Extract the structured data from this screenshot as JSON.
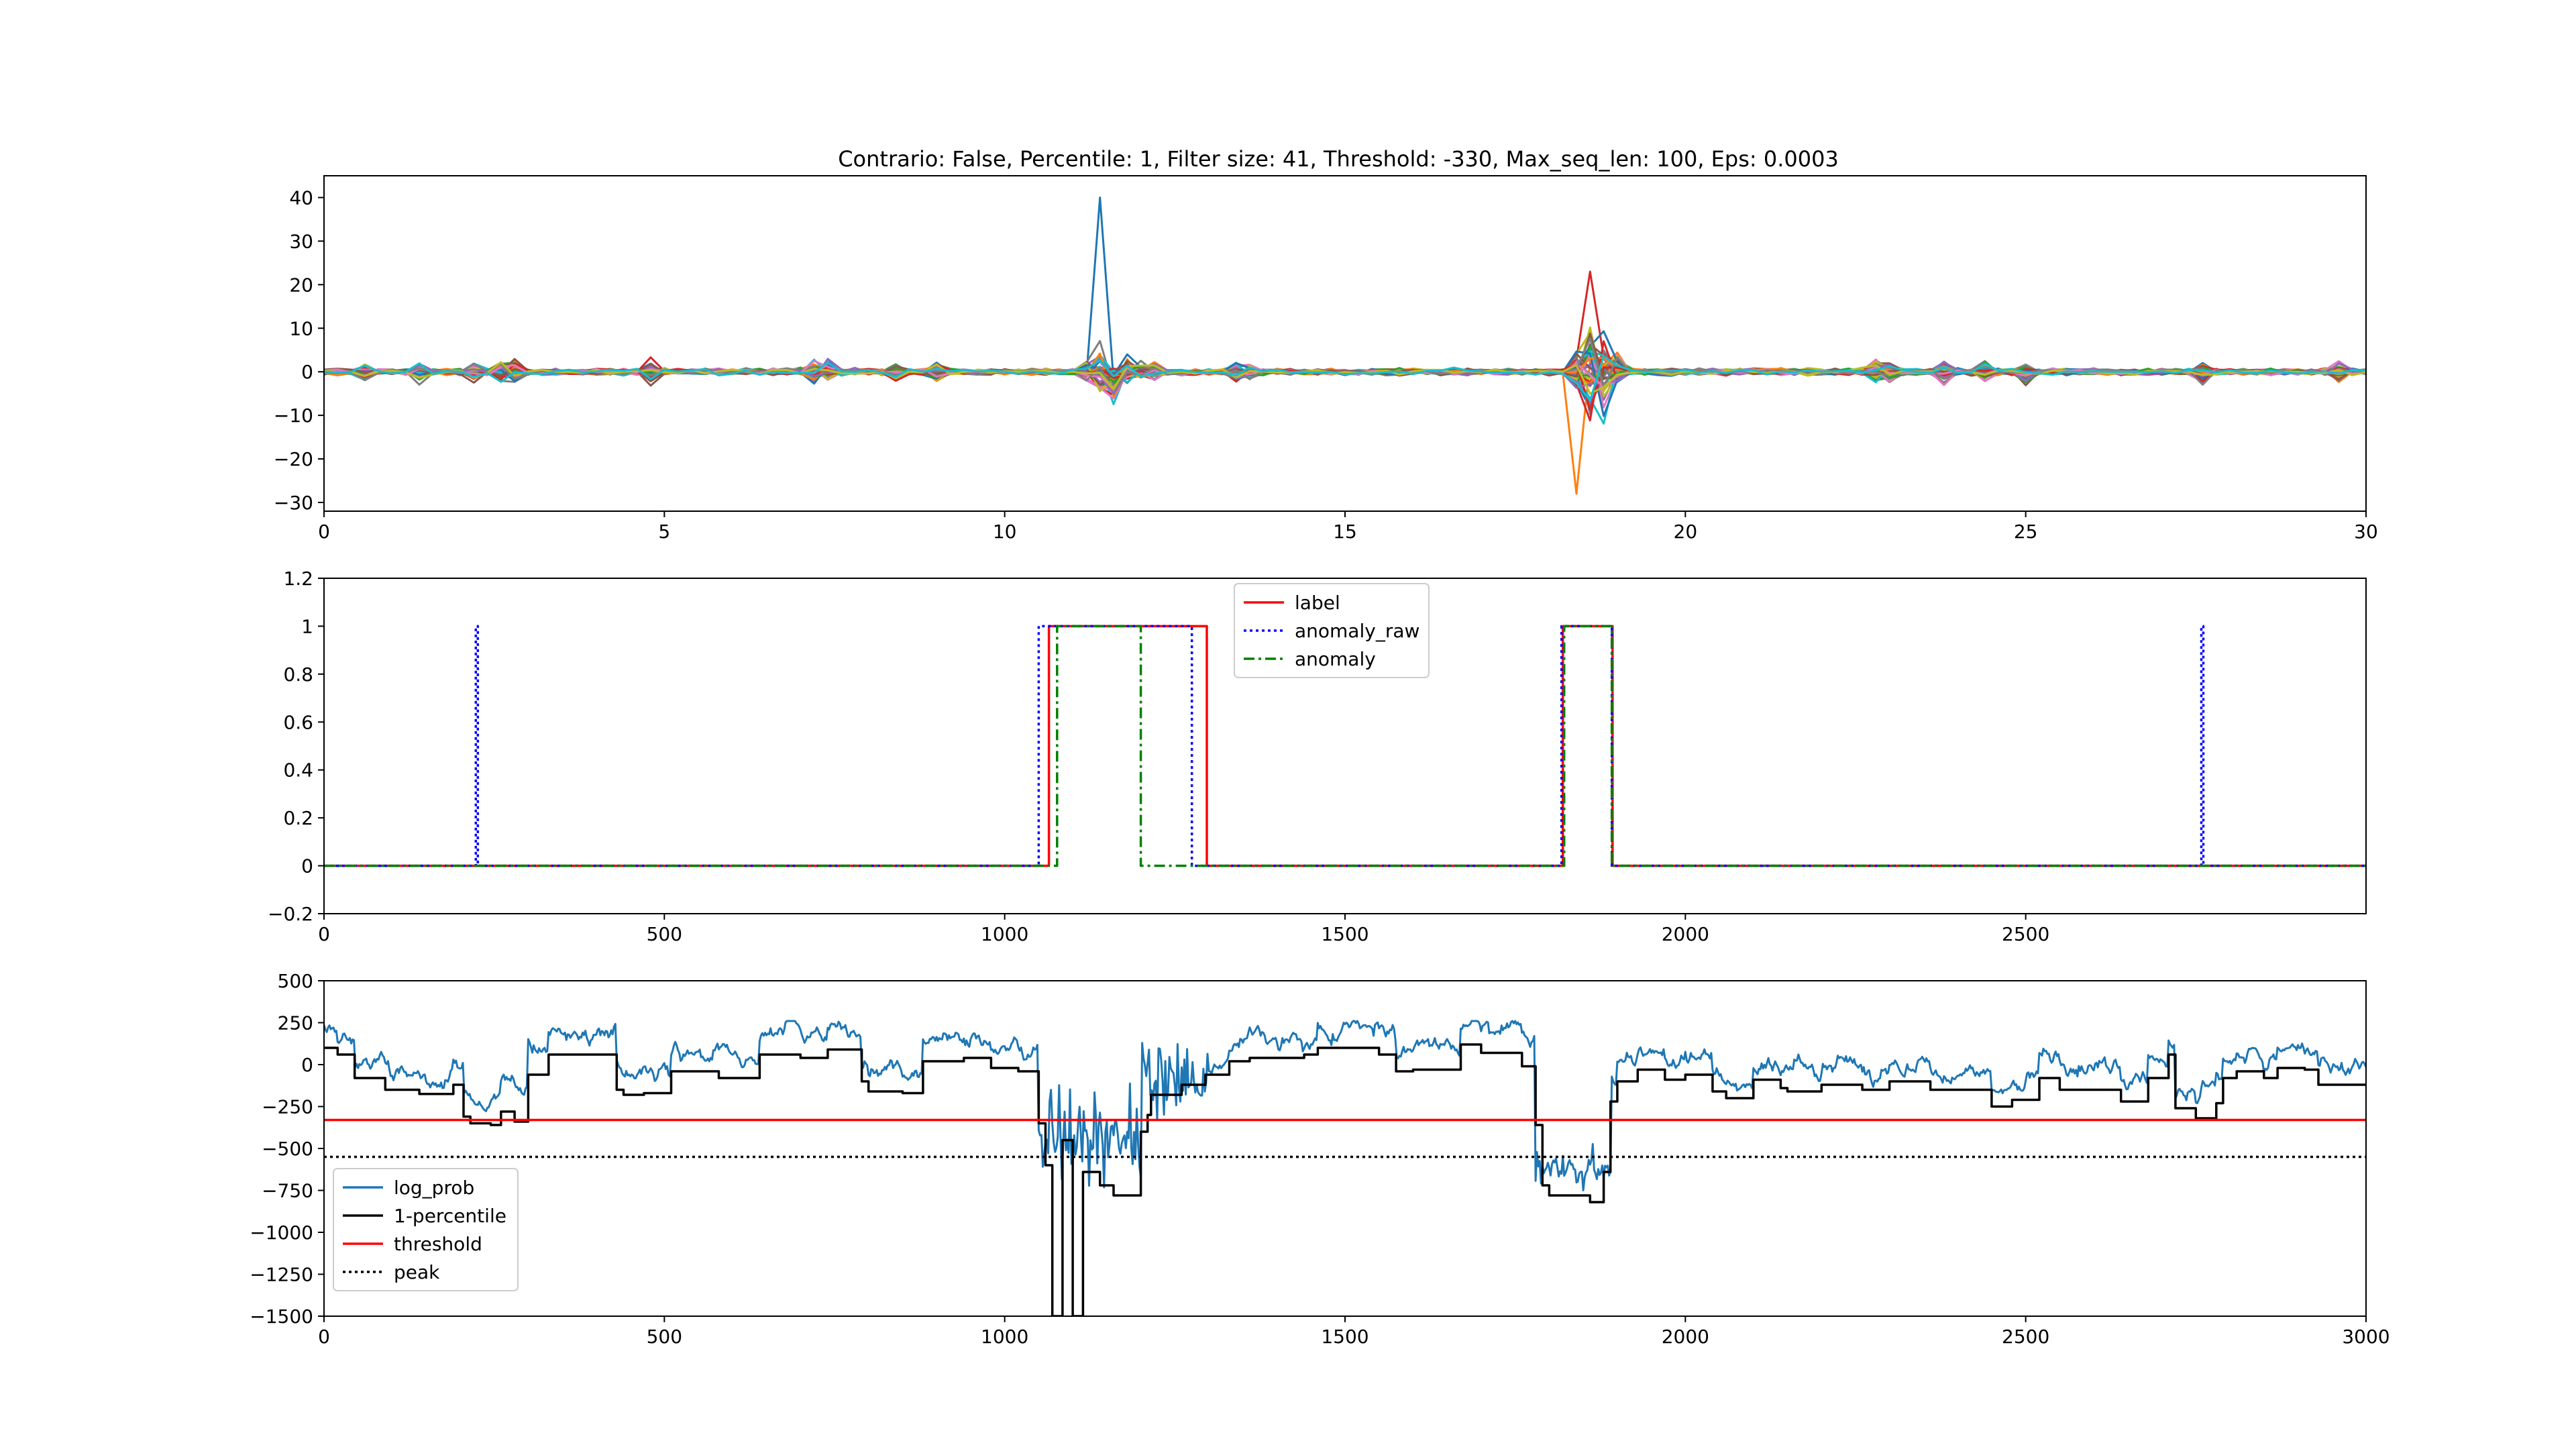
{
  "title": "Contrario: False, Percentile: 1, Filter size: 41, Threshold: -330, Max_seq_len: 100, Eps: 0.0003",
  "chart_data": [
    {
      "type": "line",
      "panel": "top",
      "xlim": [
        0,
        30
      ],
      "ylim": [
        -32,
        45
      ],
      "xticks": [
        0,
        5,
        10,
        15,
        20,
        25,
        30
      ],
      "yticks": [
        -30,
        -20,
        -10,
        0,
        10,
        20,
        30,
        40
      ],
      "grid": false,
      "legend": "none",
      "series_count": 40,
      "spikes": [
        {
          "x": 11.4,
          "max": 41,
          "min": -10
        },
        {
          "x": 18.5,
          "max": 23,
          "min": -28
        }
      ]
    },
    {
      "type": "line",
      "panel": "middle",
      "xlim": [
        0,
        3000
      ],
      "ylim": [
        -0.2,
        1.2
      ],
      "xticks": [
        0,
        500,
        1000,
        1500,
        2000,
        2500
      ],
      "yticks": [
        -0.2,
        0.0,
        0.2,
        0.4,
        0.6,
        0.8,
        1.0,
        1.2
      ],
      "grid": false,
      "legend": "upper-center",
      "series": [
        {
          "name": "label",
          "color": "#ff0000",
          "style": "solid",
          "segments": [
            [
              1065,
              1297
            ],
            [
              1820,
              1893
            ]
          ]
        },
        {
          "name": "anomaly_raw",
          "color": "#0000ff",
          "style": "dotted",
          "segments": [
            [
              223,
              226
            ],
            [
              1050,
              1275
            ],
            [
              1818,
              1892
            ],
            [
              2758,
              2761
            ]
          ]
        },
        {
          "name": "anomaly",
          "color": "#008000",
          "style": "dashdot",
          "segments": [
            [
              1077,
              1200
            ],
            [
              1822,
              1892
            ]
          ]
        }
      ]
    },
    {
      "type": "line",
      "panel": "bottom",
      "xlim": [
        0,
        3000
      ],
      "ylim": [
        -1500,
        500
      ],
      "xticks": [
        0,
        500,
        1000,
        1500,
        2000,
        2500,
        3000
      ],
      "yticks": [
        -1500,
        -1250,
        -1000,
        -750,
        -500,
        -250,
        0,
        250,
        500
      ],
      "grid": false,
      "legend": "lower-left",
      "series": [
        {
          "name": "log_prob",
          "color": "#1f77b4",
          "style": "solid"
        },
        {
          "name": "1-percentile",
          "color": "#000000",
          "style": "solid",
          "steps": [
            [
              0,
              100
            ],
            [
              20,
              60
            ],
            [
              45,
              -80
            ],
            [
              90,
              -150
            ],
            [
              140,
              -175
            ],
            [
              190,
              -120
            ],
            [
              205,
              -310
            ],
            [
              215,
              -350
            ],
            [
              245,
              -360
            ],
            [
              260,
              -280
            ],
            [
              280,
              -340
            ],
            [
              300,
              -60
            ],
            [
              330,
              60
            ],
            [
              425,
              60
            ],
            [
              430,
              -150
            ],
            [
              440,
              -180
            ],
            [
              470,
              -170
            ],
            [
              510,
              -40
            ],
            [
              580,
              -80
            ],
            [
              620,
              -80
            ],
            [
              640,
              60
            ],
            [
              680,
              60
            ],
            [
              700,
              40
            ],
            [
              740,
              90
            ],
            [
              760,
              90
            ],
            [
              790,
              -100
            ],
            [
              800,
              -160
            ],
            [
              850,
              -170
            ],
            [
              880,
              20
            ],
            [
              940,
              40
            ],
            [
              980,
              -20
            ],
            [
              1020,
              -40
            ],
            [
              1050,
              -350
            ],
            [
              1060,
              -600
            ],
            [
              1070,
              -1500
            ],
            [
              1085,
              -450
            ],
            [
              1100,
              -1500
            ],
            [
              1115,
              -640
            ],
            [
              1140,
              -720
            ],
            [
              1160,
              -780
            ],
            [
              1200,
              -400
            ],
            [
              1210,
              -300
            ],
            [
              1215,
              -180
            ],
            [
              1260,
              -120
            ],
            [
              1295,
              -60
            ],
            [
              1330,
              20
            ],
            [
              1360,
              40
            ],
            [
              1440,
              60
            ],
            [
              1460,
              100
            ],
            [
              1550,
              60
            ],
            [
              1575,
              -40
            ],
            [
              1600,
              -30
            ],
            [
              1670,
              120
            ],
            [
              1700,
              70
            ],
            [
              1760,
              -10
            ],
            [
              1780,
              -360
            ],
            [
              1790,
              -720
            ],
            [
              1800,
              -780
            ],
            [
              1860,
              -820
            ],
            [
              1880,
              -640
            ],
            [
              1890,
              -220
            ],
            [
              1900,
              -100
            ],
            [
              1930,
              -30
            ],
            [
              1970,
              -90
            ],
            [
              2000,
              -60
            ],
            [
              2040,
              -160
            ],
            [
              2060,
              -200
            ],
            [
              2100,
              -90
            ],
            [
              2140,
              -140
            ],
            [
              2150,
              -160
            ],
            [
              2200,
              -120
            ],
            [
              2260,
              -150
            ],
            [
              2300,
              -100
            ],
            [
              2360,
              -150
            ],
            [
              2400,
              -150
            ],
            [
              2450,
              -250
            ],
            [
              2480,
              -210
            ],
            [
              2520,
              -80
            ],
            [
              2550,
              -150
            ],
            [
              2600,
              -150
            ],
            [
              2640,
              -220
            ],
            [
              2680,
              -80
            ],
            [
              2710,
              60
            ],
            [
              2720,
              -260
            ],
            [
              2750,
              -320
            ],
            [
              2780,
              -230
            ],
            [
              2790,
              -80
            ],
            [
              2810,
              -40
            ],
            [
              2850,
              -80
            ],
            [
              2870,
              -20
            ],
            [
              2910,
              -30
            ],
            [
              2930,
              -120
            ],
            [
              2960,
              -120
            ],
            [
              3000,
              -120
            ]
          ]
        },
        {
          "name": "threshold",
          "color": "#ff0000",
          "style": "solid",
          "value": -330
        },
        {
          "name": "peak",
          "color": "#000000",
          "style": "dotted",
          "value": -550
        }
      ]
    }
  ],
  "colors": {
    "tab10": [
      "#1f77b4",
      "#ff7f0e",
      "#2ca02c",
      "#d62728",
      "#9467bd",
      "#8c564b",
      "#e377c2",
      "#7f7f7f",
      "#bcbd22",
      "#17becf"
    ]
  }
}
